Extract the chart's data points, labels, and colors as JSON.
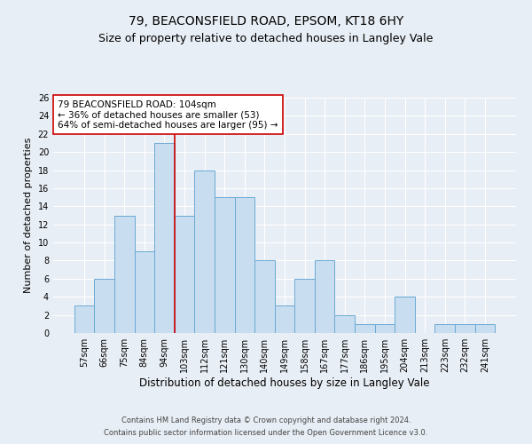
{
  "title1": "79, BEACONSFIELD ROAD, EPSOM, KT18 6HY",
  "title2": "Size of property relative to detached houses in Langley Vale",
  "xlabel": "Distribution of detached houses by size in Langley Vale",
  "ylabel": "Number of detached properties",
  "footnote1": "Contains HM Land Registry data © Crown copyright and database right 2024.",
  "footnote2": "Contains public sector information licensed under the Open Government Licence v3.0.",
  "categories": [
    "57sqm",
    "66sqm",
    "75sqm",
    "84sqm",
    "94sqm",
    "103sqm",
    "112sqm",
    "121sqm",
    "130sqm",
    "140sqm",
    "149sqm",
    "158sqm",
    "167sqm",
    "177sqm",
    "186sqm",
    "195sqm",
    "204sqm",
    "213sqm",
    "223sqm",
    "232sqm",
    "241sqm"
  ],
  "values": [
    3,
    6,
    13,
    9,
    21,
    13,
    18,
    15,
    15,
    8,
    3,
    6,
    8,
    2,
    1,
    1,
    4,
    0,
    1,
    1,
    1
  ],
  "bar_color": "#c9ddf0",
  "bar_edge_color": "#6aaad4",
  "ref_line_x": 4.5,
  "ref_line_color": "#cc0000",
  "annotation_text": "79 BEACONSFIELD ROAD: 104sqm\n← 36% of detached houses are smaller (53)\n64% of semi-detached houses are larger (95) →",
  "annotation_box_color": "#ffffff",
  "annotation_box_edge": "#cc0000",
  "ylim": [
    0,
    26
  ],
  "yticks": [
    0,
    2,
    4,
    6,
    8,
    10,
    12,
    14,
    16,
    18,
    20,
    22,
    24,
    26
  ],
  "background_color": "#e8eef5",
  "plot_background": "#e8eef5",
  "grid_color": "#ffffff",
  "title1_fontsize": 10,
  "title2_fontsize": 9,
  "xlabel_fontsize": 8.5,
  "ylabel_fontsize": 8,
  "tick_fontsize": 7,
  "annotation_fontsize": 7.5,
  "footnote_fontsize": 6
}
